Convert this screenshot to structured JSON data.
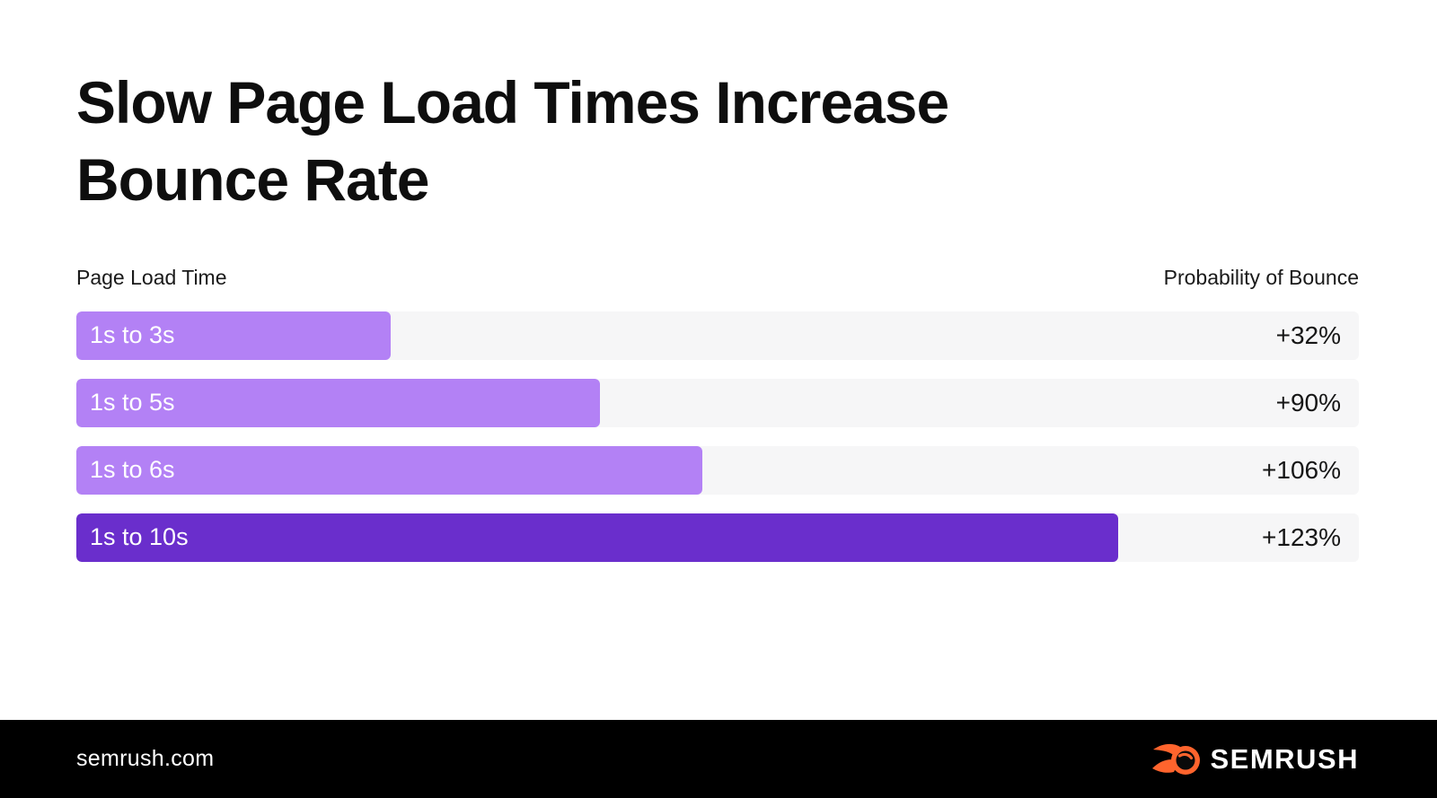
{
  "page": {
    "title": "Slow Page Load Times Increase Bounce Rate"
  },
  "chart": {
    "left_header": "Page Load Time",
    "right_header": "Probability of Bounce"
  },
  "chart_data": {
    "type": "bar",
    "orientation": "horizontal",
    "title": "Slow Page Load Times Increase Bounce Rate",
    "categories": [
      "1s to 3s",
      "1s to 5s",
      "1s to 6s",
      "1s to 10s"
    ],
    "values": [
      32,
      90,
      106,
      123
    ],
    "value_labels": [
      "+32%",
      "+90%",
      "+106%",
      "+123%"
    ],
    "xlabel": "Probability of Bounce",
    "ylabel": "Page Load Time",
    "legend": "none",
    "grid": false,
    "note": "bar lengths drawn proportional to seconds (3,5,6,10), longest bar = 81.2% of track"
  },
  "rows": [
    {
      "label": "1s to 3s",
      "value": "+32%",
      "width_pct": 24.5,
      "color": "#B381F5"
    },
    {
      "label": "1s to 5s",
      "value": "+90%",
      "width_pct": 40.8,
      "color": "#B381F5"
    },
    {
      "label": "1s to 6s",
      "value": "+106%",
      "width_pct": 48.8,
      "color": "#B381F5"
    },
    {
      "label": "1s to 10s",
      "value": "+123%",
      "width_pct": 81.2,
      "color": "#6A2ECC"
    }
  ],
  "colors": {
    "bar_light": "#B381F5",
    "bar_dark": "#6A2ECC",
    "track": "#F6F6F7",
    "footer_bg": "#000000",
    "brand_orange": "#FF642D",
    "text": "#161616"
  },
  "footer": {
    "website": "semrush.com",
    "brand": "SEMRUSH",
    "logo_icon": "semrush-comet-icon"
  }
}
